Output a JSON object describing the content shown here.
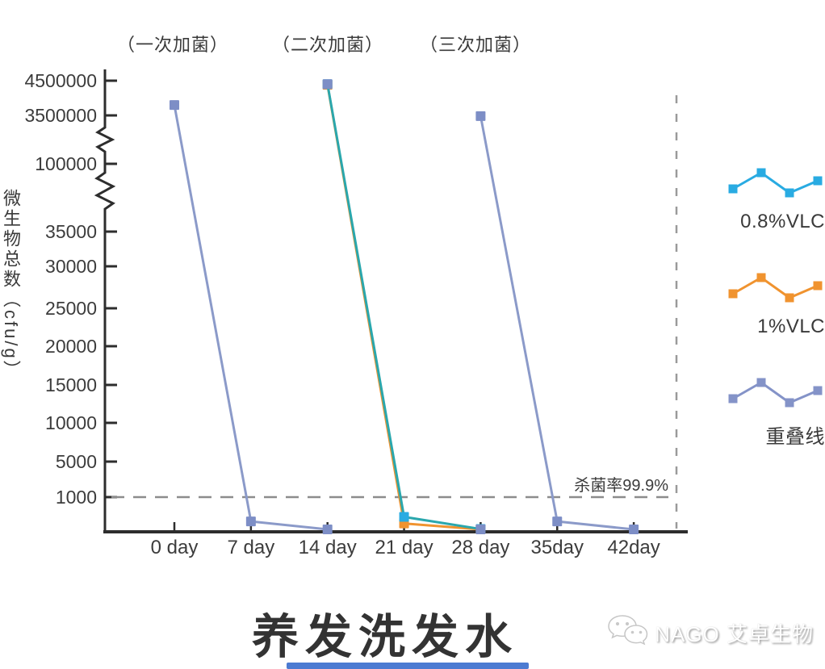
{
  "title": "养发洗发水",
  "annotations": [
    "（一次加菌）",
    "（二次加菌）",
    "（三次加菌）"
  ],
  "y_axis_title": "微生物总数（cfu/g）",
  "threshold_label": "杀菌率99.9%",
  "legend": {
    "items": [
      {
        "label": "0.8%VLC",
        "color": "#29abe2"
      },
      {
        "label": "1%VLC",
        "color": "#f0932f"
      },
      {
        "label": "重叠线",
        "color": "#8493c8"
      }
    ]
  },
  "watermark": {
    "brand": "NAGO 艾卓生物",
    "icon": "wechat-logo"
  },
  "colors": {
    "axis": "#2d2d2d",
    "text": "#3c3c3c",
    "dashed_line": "#8c8c8c",
    "cyan": "#29abe2",
    "cyan_line": "#2aa7ad",
    "orange": "#f0932f",
    "overlap_blue": "#8b9ac9",
    "bottom_bar": "#4c7bd2"
  },
  "chart_data": {
    "type": "line",
    "title": "养发洗发水",
    "ylabel": "微生物总数（cfu/g）",
    "x_tick_labels": [
      "0 day",
      "7 day",
      "14 day",
      "21 day",
      "28 day",
      "35day",
      "42day"
    ],
    "x_days": [
      0,
      7,
      14,
      21,
      28,
      35,
      42
    ],
    "y_tick_labels": [
      "4500000",
      "3500000",
      "100000",
      "35000",
      "30000",
      "25000",
      "20000",
      "15000",
      "10000",
      "5000",
      "1000"
    ],
    "y_tick_values": [
      4500000,
      3500000,
      100000,
      35000,
      30000,
      25000,
      20000,
      15000,
      10000,
      5000,
      1000
    ],
    "axis_breaks": [
      [
        3500000,
        100000
      ],
      [
        100000,
        35000
      ]
    ],
    "grid": false,
    "legend_position": "right",
    "threshold": {
      "value": 1000,
      "label": "杀菌率99.9%"
    },
    "annotations": [
      {
        "text": "（一次加菌）",
        "day": 0
      },
      {
        "text": "（二次加菌）",
        "day": 14
      },
      {
        "text": "（三次加菌）",
        "day": 28
      }
    ],
    "series": [
      {
        "name": "1%VLC",
        "color": "#f0932f",
        "marker_color": "#f0932f",
        "z": 1,
        "segments": [
          [
            [
              14,
              4380000
            ],
            [
              21,
              240
            ],
            [
              28,
              70
            ]
          ]
        ]
      },
      {
        "name": "0.8%VLC",
        "color": "#2aa7ad",
        "marker_color": "#29abe2",
        "z": 2,
        "segments": [
          [
            [
              14,
              4400000
            ],
            [
              21,
              430
            ],
            [
              28,
              80
            ]
          ]
        ]
      },
      {
        "name": "重叠线",
        "color": "#8b9ac9",
        "marker_color": "#7d8ec6",
        "z": 3,
        "segments": [
          [
            [
              0,
              3800000
            ],
            [
              7,
              300
            ],
            [
              14,
              70
            ]
          ],
          [
            [
              28,
              3450000
            ],
            [
              35,
              300
            ],
            [
              42,
              70
            ]
          ],
          [
            [
              14,
              4400000
            ]
          ],
          [
            [
              28,
              70
            ]
          ]
        ]
      }
    ]
  }
}
